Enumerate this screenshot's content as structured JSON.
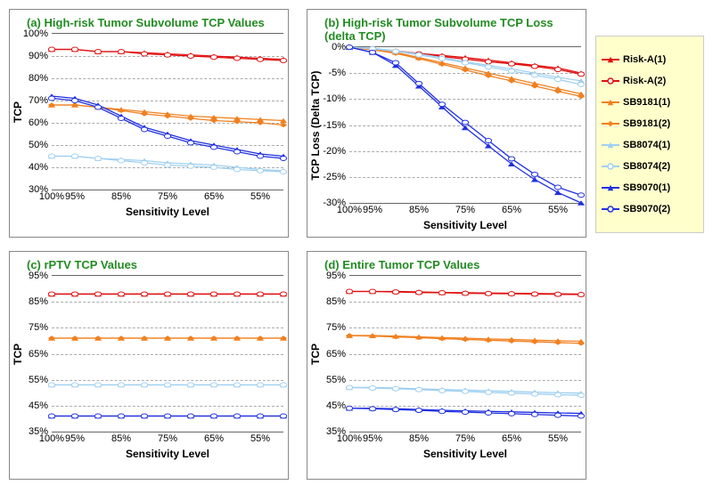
{
  "series": [
    {
      "name": "Risk-A(1)",
      "color": "#e01010",
      "marker": "triangle"
    },
    {
      "name": "Risk-A(2)",
      "color": "#e01010",
      "marker": "circle"
    },
    {
      "name": "SB9181(1)",
      "color": "#f08020",
      "marker": "triangle"
    },
    {
      "name": "SB9181(2)",
      "color": "#f08020",
      "marker": "diamond"
    },
    {
      "name": "SB8074(1)",
      "color": "#a0d0f0",
      "marker": "triangle"
    },
    {
      "name": "SB8074(2)",
      "color": "#a0d0f0",
      "marker": "circle"
    },
    {
      "name": "SB9070(1)",
      "color": "#2030e0",
      "marker": "triangle"
    },
    {
      "name": "SB9070(2)",
      "color": "#2030e0",
      "marker": "circle"
    }
  ],
  "x_categories": [
    "100%",
    "95%",
    "90%",
    "85%",
    "80%",
    "75%",
    "70%",
    "65%",
    "60%",
    "55%",
    "50%"
  ],
  "x_tick_labels": [
    "100%",
    "95%",
    "85%",
    "75%",
    "65%",
    "55%"
  ],
  "x_tick_indices": [
    0,
    1,
    3,
    5,
    7,
    9
  ],
  "x_label": "Sensitivity Level",
  "charts": {
    "a": {
      "title": "(a) High-risk Tumor Subvolume TCP Values",
      "ylabel": "TCP",
      "ylim": [
        30,
        100
      ],
      "ytick_step": 10,
      "y_suffix": "%",
      "data": {
        "Risk-A(1)": [
          93,
          93,
          92,
          92,
          91.5,
          91,
          90.5,
          90,
          89.5,
          89,
          88.5
        ],
        "Risk-A(2)": [
          93,
          93,
          92,
          92,
          91,
          90.5,
          90,
          89.5,
          89,
          88.5,
          88
        ],
        "SB9181(1)": [
          68,
          68,
          67,
          66,
          65,
          64,
          63,
          62.5,
          62,
          61.5,
          61
        ],
        "SB9181(2)": [
          68,
          68,
          67,
          65.5,
          64,
          63,
          62,
          61,
          60.5,
          60,
          59
        ],
        "SB8074(1)": [
          45,
          45,
          44,
          43.5,
          43,
          42,
          41.5,
          41,
          40,
          39,
          38.5
        ],
        "SB8074(2)": [
          45,
          45,
          44,
          43,
          42,
          41,
          40.5,
          40,
          39,
          38.5,
          38
        ],
        "SB9070(1)": [
          72,
          71,
          68,
          63,
          58,
          55,
          52,
          50,
          48,
          46,
          45
        ],
        "SB9070(2)": [
          71,
          70,
          67,
          62,
          57,
          54,
          51,
          49,
          47,
          45,
          44
        ]
      }
    },
    "b": {
      "title": "(b) High-risk Tumor Subvolume TCP Loss (delta TCP)",
      "ylabel": "TCP Loss (Delta TCP)",
      "ylim": [
        -30,
        0
      ],
      "ytick_step": 5,
      "y_suffix": "%",
      "data": {
        "Risk-A(1)": [
          0,
          -0.3,
          -0.7,
          -1.2,
          -1.6,
          -2.0,
          -2.5,
          -3.0,
          -3.5,
          -4.0,
          -5.0
        ],
        "Risk-A(2)": [
          0,
          -0.3,
          -0.8,
          -1.3,
          -1.8,
          -2.3,
          -2.8,
          -3.2,
          -3.7,
          -4.3,
          -5.2
        ],
        "SB9181(1)": [
          0,
          -0.5,
          -1.0,
          -2.0,
          -3.0,
          -4.0,
          -5.0,
          -6.0,
          -7.0,
          -8.0,
          -9.0
        ],
        "SB9181(2)": [
          0,
          -0.5,
          -1.2,
          -2.2,
          -3.3,
          -4.4,
          -5.5,
          -6.5,
          -7.5,
          -8.5,
          -9.5
        ],
        "SB8074(1)": [
          0,
          -0.2,
          -0.7,
          -1.3,
          -2.0,
          -2.8,
          -3.5,
          -4.2,
          -5.0,
          -5.8,
          -6.5
        ],
        "SB8074(2)": [
          0,
          -0.3,
          -0.8,
          -1.5,
          -2.2,
          -3.0,
          -3.8,
          -4.6,
          -5.4,
          -6.2,
          -7.2
        ],
        "SB9070(1)": [
          0,
          -1.0,
          -3.5,
          -7.5,
          -11.5,
          -15.5,
          -19.0,
          -22.5,
          -25.5,
          -28.0,
          -30.0
        ],
        "SB9070(2)": [
          0,
          -1.0,
          -3.0,
          -7.0,
          -11.0,
          -14.5,
          -18.0,
          -21.5,
          -24.5,
          -27.0,
          -28.5
        ]
      }
    },
    "c": {
      "title": "(c) rPTV TCP Values",
      "ylabel": "TCP",
      "ylim": [
        35,
        95
      ],
      "ytick_step": 10,
      "y_suffix": "%",
      "data": {
        "Risk-A(1)": [
          88,
          88,
          88,
          88,
          88,
          88,
          88,
          88,
          88,
          88,
          88
        ],
        "Risk-A(2)": [
          88,
          88,
          88,
          88,
          88,
          88,
          88,
          88,
          88,
          88,
          88
        ],
        "SB9181(1)": [
          71,
          71,
          71,
          71,
          71,
          71,
          71,
          71,
          71,
          71,
          71
        ],
        "SB9181(2)": [
          71,
          71,
          71,
          71,
          71,
          71,
          71,
          71,
          71,
          71,
          71
        ],
        "SB8074(1)": [
          53,
          53,
          53,
          53,
          53,
          53,
          53,
          53,
          53,
          53,
          53
        ],
        "SB8074(2)": [
          53,
          53,
          53,
          53,
          53,
          53,
          53,
          53,
          53,
          53,
          53
        ],
        "SB9070(1)": [
          41,
          41,
          41,
          41,
          41,
          41,
          41,
          41,
          41,
          41,
          41
        ],
        "SB9070(2)": [
          41,
          41,
          41,
          41,
          41,
          41,
          41,
          41,
          41,
          41,
          41
        ]
      }
    },
    "d": {
      "title": "(d) Entire Tumor TCP Values",
      "ylabel": "TCP",
      "ylim": [
        35,
        95
      ],
      "ytick_step": 10,
      "y_suffix": "%",
      "data": {
        "Risk-A(1)": [
          89,
          89,
          89,
          88.8,
          88.6,
          88.5,
          88.4,
          88.3,
          88.2,
          88.1,
          88
        ],
        "Risk-A(2)": [
          89,
          89,
          88.8,
          88.6,
          88.5,
          88.3,
          88.2,
          88.1,
          88,
          87.9,
          87.8
        ],
        "SB9181(1)": [
          72,
          72,
          71.8,
          71.5,
          71.2,
          71,
          70.7,
          70.5,
          70.2,
          70,
          69.8
        ],
        "SB9181(2)": [
          72,
          71.8,
          71.5,
          71.2,
          70.8,
          70.5,
          70.2,
          69.9,
          69.6,
          69.3,
          69
        ],
        "SB8074(1)": [
          52,
          52,
          51.8,
          51.5,
          51.2,
          51,
          50.7,
          50.5,
          50.2,
          50,
          49.8
        ],
        "SB8074(2)": [
          52,
          51.8,
          51.5,
          51.2,
          50.8,
          50.5,
          50.1,
          49.8,
          49.5,
          49.2,
          49
        ],
        "SB9070(1)": [
          44,
          44,
          43.8,
          43.5,
          43.2,
          43,
          42.8,
          42.6,
          42.4,
          42.2,
          42
        ],
        "SB9070(2)": [
          44,
          43.8,
          43.5,
          43.2,
          42.8,
          42.5,
          42.2,
          41.9,
          41.6,
          41.3,
          41
        ]
      }
    }
  }
}
